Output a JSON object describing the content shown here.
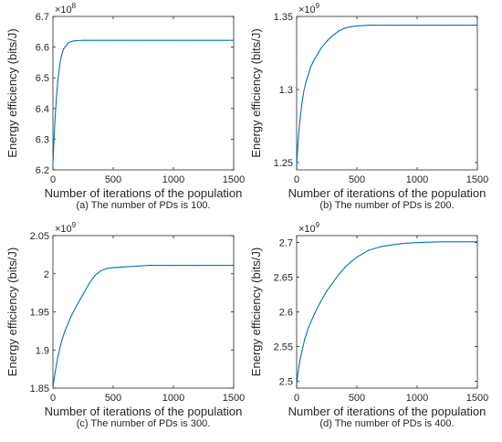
{
  "figure": {
    "line_color": "#0072BD",
    "axis_color": "#262626"
  },
  "chart_data": [
    {
      "type": "line",
      "caption": "(a) The number of PDs is 100.",
      "xlabel": "Number of iterations of the population",
      "ylabel": "Energy efficiency (bits/J)",
      "exponent_base": "×10",
      "exponent": "8",
      "xlim": [
        0,
        1500
      ],
      "ylim": [
        6.2,
        6.7
      ],
      "xticks": [
        0,
        500,
        1000,
        1500
      ],
      "yticks": [
        6.2,
        6.3,
        6.4,
        6.5,
        6.6,
        6.7
      ],
      "ytick_labels": [
        "6.2",
        "6.3",
        "6.4",
        "6.5",
        "6.6",
        "6.7"
      ],
      "series": [
        {
          "x": [
            0,
            10,
            20,
            30,
            40,
            50,
            60,
            70,
            80,
            90,
            100,
            110,
            120,
            130,
            150,
            170,
            200,
            250,
            300,
            500,
            800,
            1000,
            1200,
            1500
          ],
          "y": [
            6.22,
            6.31,
            6.38,
            6.44,
            6.49,
            6.52,
            6.55,
            6.57,
            6.585,
            6.595,
            6.6,
            6.605,
            6.61,
            6.615,
            6.618,
            6.62,
            6.621,
            6.622,
            6.622,
            6.622,
            6.622,
            6.622,
            6.622,
            6.622
          ]
        }
      ]
    },
    {
      "type": "line",
      "caption": "(b) The number of PDs is 200.",
      "xlabel": "Number of iterations of the population",
      "ylabel": "Energy efficiency (bits/J)",
      "exponent_base": "×10",
      "exponent": "9",
      "xlim": [
        0,
        1500
      ],
      "ylim": [
        1.245,
        1.35
      ],
      "xticks": [
        0,
        500,
        1000,
        1500
      ],
      "yticks": [
        1.25,
        1.3,
        1.35
      ],
      "ytick_labels": [
        "1.25",
        "1.3",
        "1.35"
      ],
      "series": [
        {
          "x": [
            0,
            10,
            20,
            30,
            40,
            50,
            60,
            80,
            100,
            120,
            150,
            180,
            200,
            250,
            300,
            350,
            400,
            450,
            500,
            600,
            800,
            1000,
            1200,
            1500
          ],
          "y": [
            1.247,
            1.262,
            1.272,
            1.281,
            1.288,
            1.294,
            1.299,
            1.306,
            1.311,
            1.316,
            1.321,
            1.325,
            1.328,
            1.333,
            1.337,
            1.34,
            1.342,
            1.343,
            1.3435,
            1.344,
            1.344,
            1.344,
            1.344,
            1.344
          ]
        }
      ]
    },
    {
      "type": "line",
      "caption": "(c) The number of PDs is 300.",
      "xlabel": "Number of iterations of the population",
      "ylabel": "Energy efficiency (bits/J)",
      "exponent_base": "×10",
      "exponent": "9",
      "xlim": [
        0,
        1500
      ],
      "ylim": [
        1.85,
        2.05
      ],
      "xticks": [
        0,
        500,
        1000,
        1500
      ],
      "yticks": [
        1.85,
        1.9,
        1.95,
        2.0,
        2.05
      ],
      "ytick_labels": [
        "1.85",
        "1.9",
        "1.95",
        "2",
        "2.05"
      ],
      "series": [
        {
          "x": [
            0,
            10,
            20,
            30,
            40,
            50,
            60,
            80,
            100,
            150,
            200,
            250,
            300,
            350,
            400,
            450,
            500,
            600,
            700,
            800,
            1000,
            1200,
            1500
          ],
          "y": [
            1.85,
            1.862,
            1.872,
            1.882,
            1.89,
            1.897,
            1.904,
            1.916,
            1.925,
            1.944,
            1.959,
            1.973,
            1.987,
            1.998,
            2.004,
            2.007,
            2.008,
            2.009,
            2.01,
            2.011,
            2.011,
            2.011,
            2.011
          ]
        }
      ]
    },
    {
      "type": "line",
      "caption": "(d) The number of PDs is 400.",
      "xlabel": "Number of iterations of the population",
      "ylabel": "Energy efficiency (bits/J)",
      "exponent_base": "×10",
      "exponent": "9",
      "xlim": [
        0,
        1500
      ],
      "ylim": [
        2.49,
        2.71
      ],
      "xticks": [
        0,
        500,
        1000,
        1500
      ],
      "yticks": [
        2.5,
        2.55,
        2.6,
        2.65,
        2.7
      ],
      "ytick_labels": [
        "2.5",
        "2.55",
        "2.6",
        "2.65",
        "2.7"
      ],
      "series": [
        {
          "x": [
            0,
            10,
            20,
            30,
            50,
            70,
            100,
            150,
            200,
            250,
            300,
            350,
            400,
            450,
            500,
            550,
            600,
            700,
            800,
            900,
            1000,
            1200,
            1500
          ],
          "y": [
            2.495,
            2.51,
            2.522,
            2.532,
            2.548,
            2.562,
            2.578,
            2.598,
            2.615,
            2.63,
            2.642,
            2.654,
            2.664,
            2.672,
            2.679,
            2.684,
            2.689,
            2.694,
            2.697,
            2.699,
            2.7,
            2.701,
            2.701
          ]
        }
      ]
    }
  ]
}
